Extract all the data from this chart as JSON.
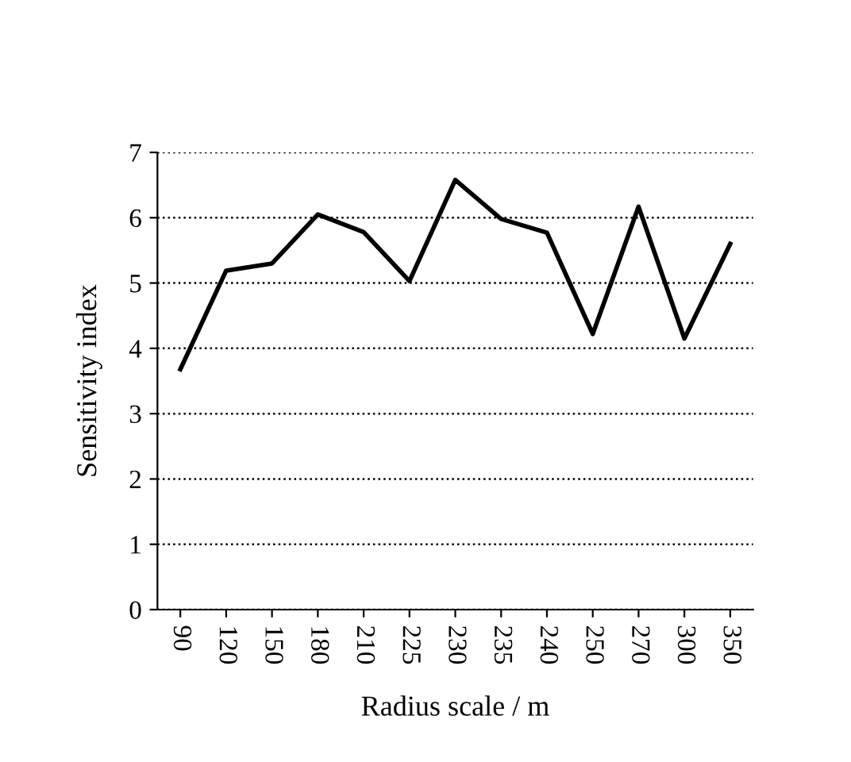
{
  "chart_data": {
    "type": "line",
    "xlabel": "Radius scale / m",
    "ylabel": "Sensitivity index",
    "categories": [
      "90",
      "120",
      "150",
      "180",
      "210",
      "225",
      "230",
      "235",
      "240",
      "250",
      "270",
      "300",
      "350"
    ],
    "series": [
      {
        "color": "#000000",
        "values": [
          3.68,
          5.19,
          5.3,
          6.05,
          5.78,
          5.03,
          6.58,
          5.98,
          5.77,
          4.22,
          6.17,
          4.15,
          5.6
        ]
      }
    ],
    "ylim": [
      0,
      7
    ],
    "yticks": [
      0,
      1,
      2,
      3,
      4,
      5,
      6,
      7
    ],
    "grid": "y",
    "line_style": "solid",
    "marker": "none"
  }
}
